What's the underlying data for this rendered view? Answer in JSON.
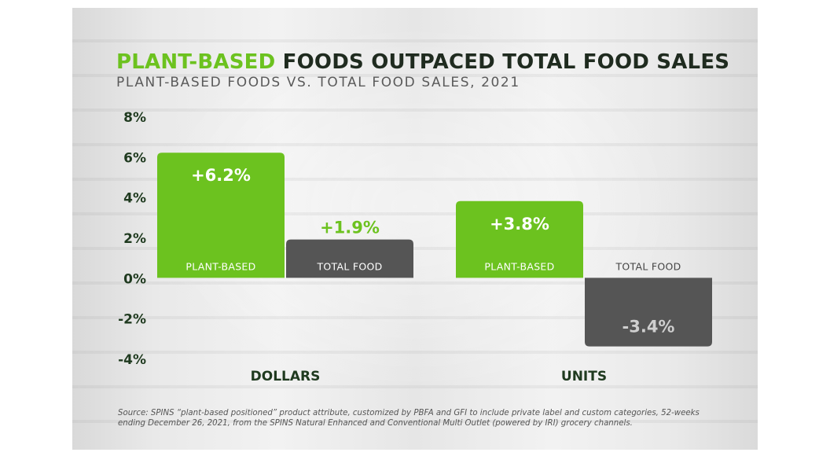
{
  "title": {
    "accent": "PLANT-BASED",
    "rest": " FOODS OUTPACED TOTAL FOOD SALES"
  },
  "subtitle": "PLANT-BASED FOODS VS. TOTAL FOOD SALES, 2021",
  "source": "Source: SPINS “plant-based positioned” product attribute, customized by PBFA and GFI to include private label and custom categories, 52-weeks ending December 26, 2021, from the SPINS Natural Enhanced and Conventional Multi Outlet (powered by IRI) grocery channels.",
  "colors": {
    "plant": "#6cc21f",
    "total": "#555555",
    "axis": "#1f3a1f",
    "title_accent": "#6cc21f"
  },
  "chart_data": {
    "type": "bar",
    "categories": [
      "DOLLARS",
      "UNITS"
    ],
    "series": [
      {
        "name": "PLANT-BASED",
        "values": [
          6.2,
          3.8
        ],
        "labels": [
          "+6.2%",
          "+3.8%"
        ]
      },
      {
        "name": "TOTAL FOOD",
        "values": [
          1.9,
          -3.4
        ],
        "labels": [
          "+1.9%",
          "-3.4%"
        ]
      }
    ],
    "ylim": [
      -4,
      8
    ],
    "yticks": [
      8,
      6,
      4,
      2,
      0,
      -2,
      -4
    ],
    "ytick_labels": [
      "8%",
      "6%",
      "4%",
      "2%",
      "0%",
      "-2%",
      "-4%"
    ],
    "grid": false
  }
}
